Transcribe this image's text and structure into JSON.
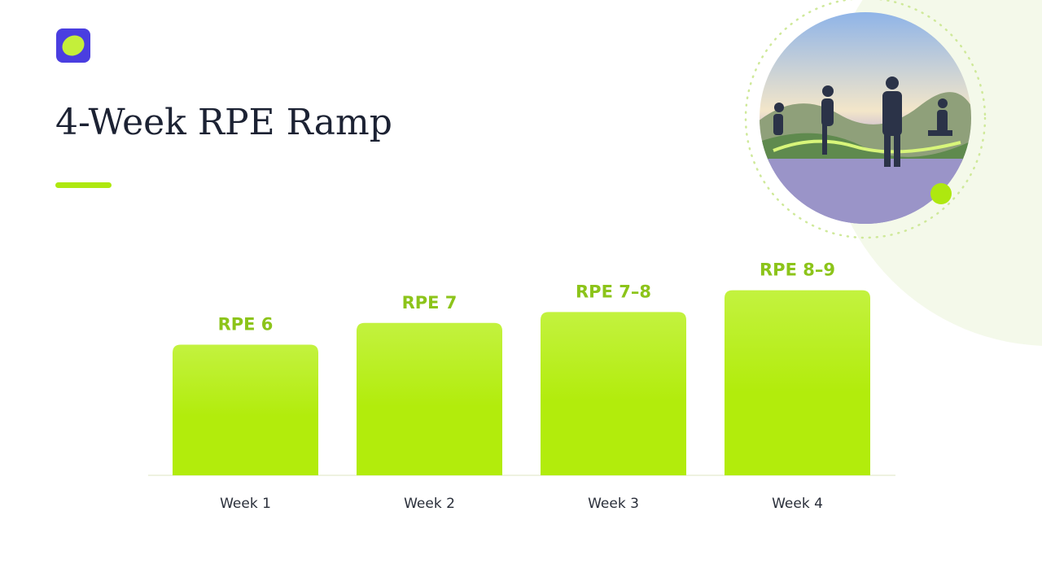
{
  "chart_data": {
    "type": "bar",
    "title": "4-Week RPE Ramp",
    "categories": [
      "Week 1",
      "Week 2",
      "Week 3",
      "Week 4"
    ],
    "values": [
      6,
      7,
      7.5,
      8.5
    ],
    "value_labels": [
      "RPE 6",
      "RPE 7",
      "RPE 7–8",
      "RPE 8–9"
    ],
    "color": "#b2ec0c",
    "label_color": "#8cc41a"
  }
}
